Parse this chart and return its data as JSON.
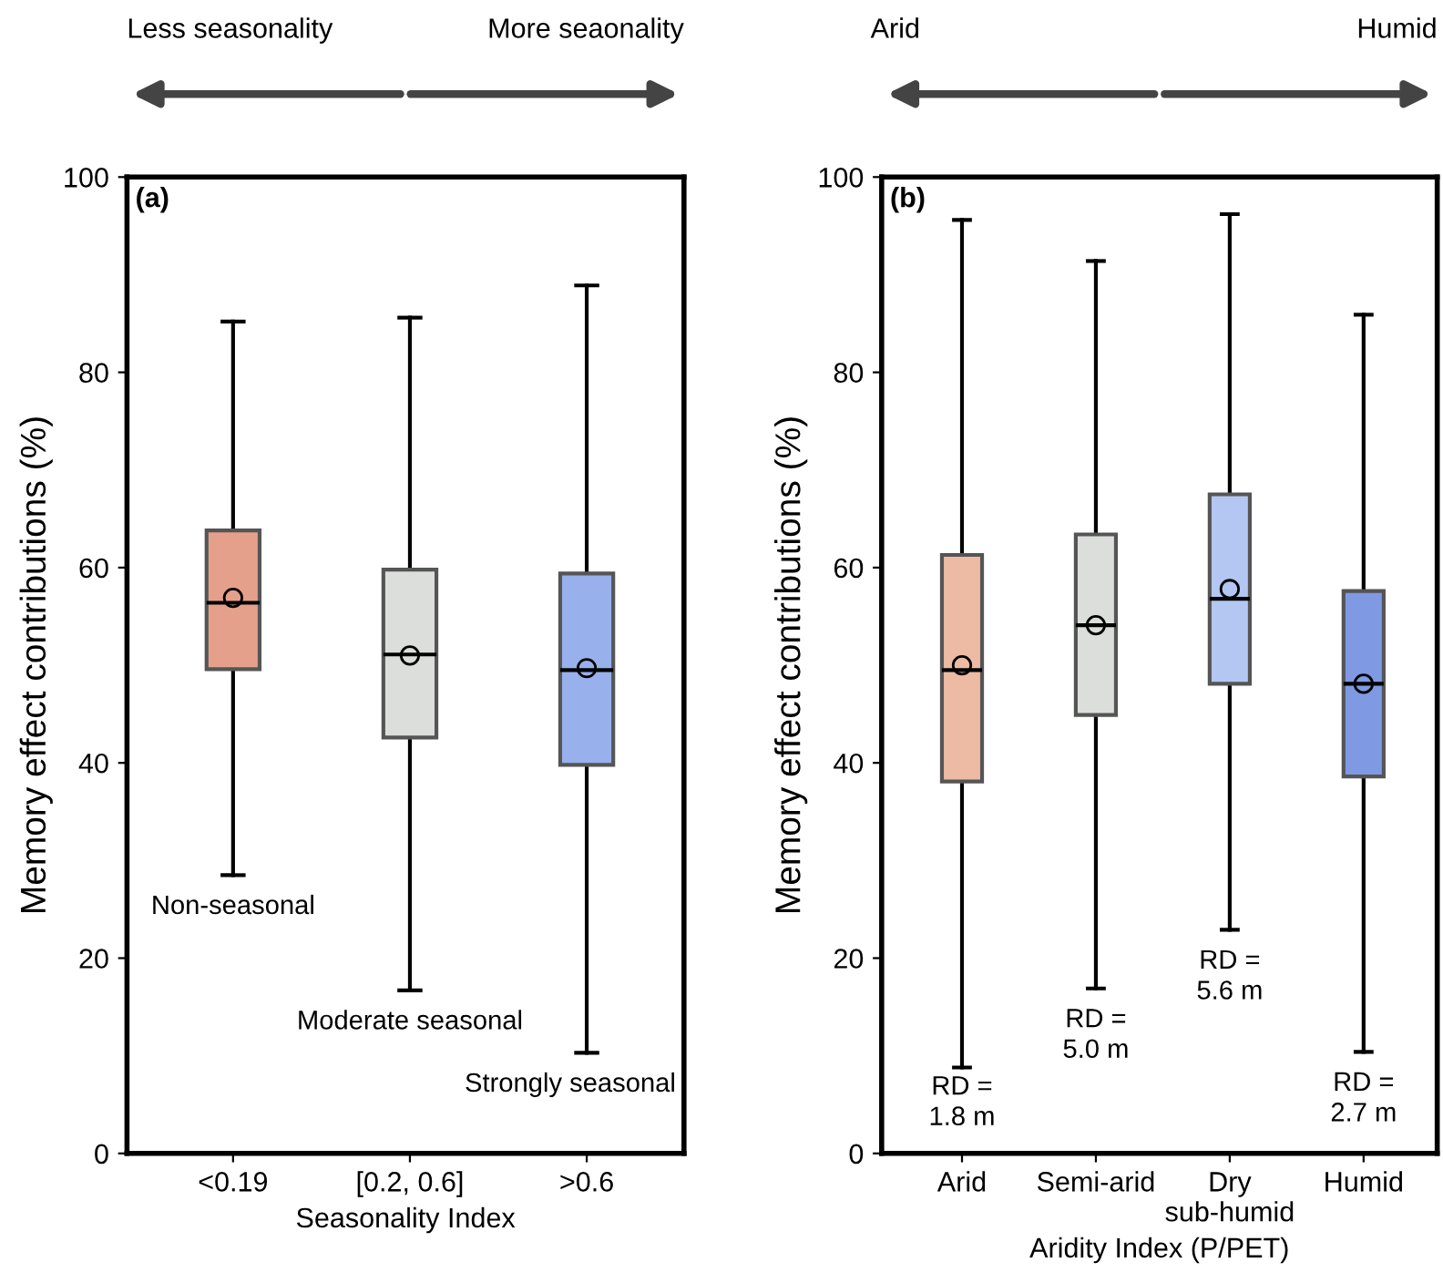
{
  "chart_data": [
    {
      "type": "box",
      "title": null,
      "xlabel": "Seasonality Index",
      "ylabel": "Memory effect contributions (%)",
      "categories": [
        "<0.19",
        "[0.2, 0.6]",
        ">0.6"
      ],
      "colors": [
        "#e4a08a",
        "#dcdedc",
        "#98b0ec"
      ],
      "boxes": [
        {
          "low": 28.5,
          "q1": 49.6,
          "median": 56.4,
          "q3": 63.8,
          "high": 85.2,
          "mean": 56.9
        },
        {
          "low": 16.7,
          "q1": 42.6,
          "median": 51.1,
          "q3": 59.8,
          "high": 85.6,
          "mean": 51.0
        },
        {
          "low": 10.3,
          "q1": 39.8,
          "median": 49.5,
          "q3": 59.4,
          "high": 88.9,
          "mean": 49.7
        }
      ],
      "ylim": [
        0,
        100
      ],
      "yticks": [
        0,
        20,
        40,
        60,
        80,
        100
      ],
      "grid": false,
      "legend": false,
      "annotations": [
        "(a)",
        "Less seasonality",
        "More seaonality",
        "Non-seasonal",
        "Moderate seasonal",
        "Strongly seasonal"
      ]
    },
    {
      "type": "box",
      "xlabel": "Aridity Index (P/PET)",
      "ylabel": "Memory effect contributions (%)",
      "categories": [
        "Arid",
        "Semi-arid",
        "Dry\nsub-humid",
        "Humid"
      ],
      "colors": [
        "#edbaa3",
        "#dcdedc",
        "#b3c7f2",
        "#7f99e3"
      ],
      "boxes": [
        {
          "low": 8.8,
          "q1": 38.1,
          "median": 49.5,
          "q3": 61.3,
          "high": 95.6,
          "mean": 50.0
        },
        {
          "low": 16.9,
          "q1": 44.9,
          "median": 54.1,
          "q3": 63.4,
          "high": 91.4,
          "mean": 54.1
        },
        {
          "low": 22.9,
          "q1": 48.1,
          "median": 56.8,
          "q3": 67.5,
          "high": 96.2,
          "mean": 57.8
        },
        {
          "low": 10.4,
          "q1": 38.6,
          "median": 48.1,
          "q3": 57.6,
          "high": 85.9,
          "mean": 48.1
        }
      ],
      "ylim": [
        0,
        100
      ],
      "yticks": [
        0,
        20,
        40,
        60,
        80,
        100
      ],
      "grid": false,
      "legend": false,
      "annotations": [
        "(b)",
        "Arid",
        "Humid",
        "RD =\n1.8 m",
        "RD =\n5.0 m",
        "RD =\n5.6 m",
        "RD =\n2.7 m"
      ]
    }
  ]
}
